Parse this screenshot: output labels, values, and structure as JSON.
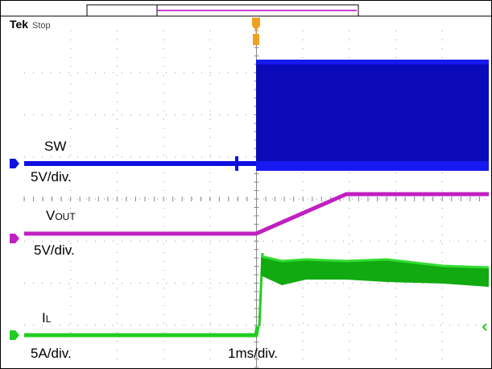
{
  "header": {
    "brand": "Tek",
    "status": "Stop"
  },
  "channels": [
    {
      "name": "SW",
      "scale": "5V/div."
    },
    {
      "name": "V",
      "sub": "OUT",
      "scale": "5V/div."
    },
    {
      "name": "I",
      "sub": "L",
      "scale": "5A/div."
    }
  ],
  "timebase": "1ms/div."
}
